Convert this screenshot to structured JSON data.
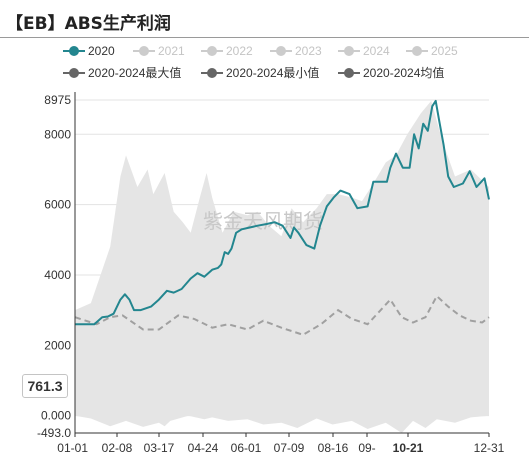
{
  "title": "【EB】ABS生产利润",
  "watermark": "紫金天风期货",
  "legend": [
    {
      "label": "2020",
      "color": "#23868f",
      "active": true
    },
    {
      "label": "2021",
      "color": "#cccccc",
      "active": false
    },
    {
      "label": "2022",
      "color": "#cccccc",
      "active": false
    },
    {
      "label": "2023",
      "color": "#cccccc",
      "active": false
    },
    {
      "label": "2024",
      "color": "#cccccc",
      "active": false
    },
    {
      "label": "2025",
      "color": "#cccccc",
      "active": false
    },
    {
      "label": "2020-2024最大值",
      "color": "#666666",
      "active": true
    },
    {
      "label": "2020-2024最小值",
      "color": "#666666",
      "active": true
    },
    {
      "label": "2020-2024均值",
      "color": "#666666",
      "active": true
    }
  ],
  "crosshair": {
    "x_label": "10-21",
    "y_label": "761.3"
  },
  "chart_data": {
    "type": "area",
    "x_ticks": [
      "01-01",
      "02-08",
      "03-17",
      "04-24",
      "06-01",
      "07-09",
      "08-16",
      "09-",
      "10-21",
      "12-31"
    ],
    "y_ticks": [
      "-493.0",
      "0.000",
      "2000",
      "4000",
      "6000",
      "8000",
      "8975"
    ],
    "ylim": [
      -493,
      8975
    ],
    "grid": true,
    "series": [
      {
        "name": "2020",
        "style": "line",
        "color": "#23868f",
        "points": [
          [
            "01-01",
            2600
          ],
          [
            "01-18",
            2600
          ],
          [
            "01-25",
            2800
          ],
          [
            "01-30",
            2820
          ],
          [
            "02-04",
            2900
          ],
          [
            "02-10",
            3300
          ],
          [
            "02-14",
            3450
          ],
          [
            "02-18",
            3300
          ],
          [
            "02-22",
            3000
          ],
          [
            "02-28",
            3000
          ],
          [
            "03-08",
            3100
          ],
          [
            "03-15",
            3300
          ],
          [
            "03-22",
            3550
          ],
          [
            "03-28",
            3500
          ],
          [
            "04-04",
            3600
          ],
          [
            "04-12",
            3900
          ],
          [
            "04-18",
            4050
          ],
          [
            "04-24",
            3950
          ],
          [
            "05-01",
            4150
          ],
          [
            "05-06",
            4200
          ],
          [
            "05-09",
            4300
          ],
          [
            "05-12",
            4650
          ],
          [
            "05-15",
            4600
          ],
          [
            "05-18",
            4750
          ],
          [
            "05-22",
            5200
          ],
          [
            "05-27",
            5300
          ],
          [
            "06-03",
            5350
          ],
          [
            "06-10",
            5400
          ],
          [
            "06-18",
            5450
          ],
          [
            "06-25",
            5500
          ],
          [
            "07-02",
            5400
          ],
          [
            "07-09",
            5050
          ],
          [
            "07-12",
            5350
          ],
          [
            "07-16",
            5200
          ],
          [
            "07-23",
            4850
          ],
          [
            "07-30",
            4750
          ],
          [
            "08-04",
            5400
          ],
          [
            "08-10",
            5950
          ],
          [
            "08-16",
            6200
          ],
          [
            "08-22",
            6400
          ],
          [
            "08-30",
            6300
          ],
          [
            "09-06",
            5900
          ],
          [
            "09-15",
            5950
          ],
          [
            "09-20",
            6650
          ],
          [
            "09-26",
            6650
          ],
          [
            "10-02",
            6650
          ],
          [
            "10-05",
            7050
          ],
          [
            "10-10",
            7450
          ],
          [
            "10-16",
            7050
          ],
          [
            "10-22",
            7050
          ],
          [
            "10-26",
            8000
          ],
          [
            "10-30",
            7600
          ],
          [
            "11-03",
            8300
          ],
          [
            "11-07",
            8100
          ],
          [
            "11-11",
            8800
          ],
          [
            "11-14",
            8950
          ],
          [
            "11-17",
            8400
          ],
          [
            "11-21",
            7700
          ],
          [
            "11-25",
            6800
          ],
          [
            "11-30",
            6500
          ],
          [
            "12-08",
            6600
          ],
          [
            "12-14",
            6950
          ],
          [
            "12-20",
            6500
          ],
          [
            "12-27",
            6750
          ],
          [
            "12-31",
            6150
          ]
        ]
      },
      {
        "name": "2020-2024最大值",
        "style": "area-upper",
        "color": "#e5e5e5",
        "points": [
          [
            "01-01",
            3000
          ],
          [
            "01-15",
            3200
          ],
          [
            "02-01",
            4800
          ],
          [
            "02-10",
            6800
          ],
          [
            "02-15",
            7400
          ],
          [
            "02-25",
            6500
          ],
          [
            "03-05",
            7000
          ],
          [
            "03-10",
            6300
          ],
          [
            "03-20",
            6900
          ],
          [
            "03-28",
            5800
          ],
          [
            "04-05",
            5500
          ],
          [
            "04-12",
            5200
          ],
          [
            "04-20",
            6200
          ],
          [
            "04-26",
            6900
          ],
          [
            "05-01",
            6200
          ],
          [
            "05-10",
            5200
          ],
          [
            "05-20",
            5800
          ],
          [
            "06-01",
            5700
          ],
          [
            "06-10",
            5800
          ],
          [
            "06-20",
            5400
          ],
          [
            "07-01",
            5100
          ],
          [
            "07-10",
            5900
          ],
          [
            "07-20",
            5500
          ],
          [
            "08-01",
            5900
          ],
          [
            "08-10",
            6300
          ],
          [
            "08-20",
            6300
          ],
          [
            "09-01",
            6200
          ],
          [
            "09-10",
            6100
          ],
          [
            "09-20",
            6600
          ],
          [
            "10-01",
            7200
          ],
          [
            "10-10",
            7400
          ],
          [
            "10-20",
            8000
          ],
          [
            "11-01",
            8600
          ],
          [
            "11-10",
            8950
          ],
          [
            "11-20",
            7800
          ],
          [
            "12-01",
            6800
          ],
          [
            "12-15",
            7000
          ],
          [
            "12-31",
            6500
          ]
        ]
      },
      {
        "name": "2020-2024最小值",
        "style": "area-lower",
        "color": "#ffffff",
        "points": [
          [
            "01-01",
            0
          ],
          [
            "01-15",
            -80
          ],
          [
            "02-01",
            -300
          ],
          [
            "02-15",
            -150
          ],
          [
            "03-01",
            -320
          ],
          [
            "03-15",
            -200
          ],
          [
            "03-20",
            -300
          ],
          [
            "03-25",
            -150
          ],
          [
            "04-10",
            0
          ],
          [
            "04-24",
            -100
          ],
          [
            "05-01",
            -50
          ],
          [
            "05-15",
            -150
          ],
          [
            "06-01",
            -100
          ],
          [
            "06-15",
            -250
          ],
          [
            "07-01",
            -200
          ],
          [
            "07-15",
            -350
          ],
          [
            "08-01",
            -80
          ],
          [
            "08-15",
            -250
          ],
          [
            "09-01",
            -150
          ],
          [
            "09-15",
            -380
          ],
          [
            "10-01",
            -200
          ],
          [
            "10-15",
            -493
          ],
          [
            "10-25",
            -150
          ],
          [
            "11-05",
            -350
          ],
          [
            "11-15",
            -100
          ],
          [
            "12-01",
            -200
          ],
          [
            "12-15",
            -50
          ],
          [
            "12-31",
            0
          ]
        ]
      },
      {
        "name": "2020-2024均值",
        "style": "dashed",
        "color": "#a0a0a0",
        "points": [
          [
            "01-01",
            2800
          ],
          [
            "01-20",
            2600
          ],
          [
            "02-01",
            2800
          ],
          [
            "02-12",
            2850
          ],
          [
            "03-01",
            2450
          ],
          [
            "03-15",
            2450
          ],
          [
            "04-01",
            2850
          ],
          [
            "04-15",
            2750
          ],
          [
            "05-01",
            2500
          ],
          [
            "05-15",
            2600
          ],
          [
            "06-01",
            2450
          ],
          [
            "06-15",
            2700
          ],
          [
            "07-01",
            2500
          ],
          [
            "07-20",
            2300
          ],
          [
            "08-05",
            2600
          ],
          [
            "08-20",
            3000
          ],
          [
            "09-01",
            2750
          ],
          [
            "09-15",
            2600
          ],
          [
            "09-25",
            2950
          ],
          [
            "10-05",
            3300
          ],
          [
            "10-15",
            2800
          ],
          [
            "10-25",
            2650
          ],
          [
            "11-05",
            2800
          ],
          [
            "11-15",
            3400
          ],
          [
            "11-25",
            3100
          ],
          [
            "12-05",
            2850
          ],
          [
            "12-15",
            2700
          ],
          [
            "12-25",
            2650
          ],
          [
            "12-31",
            2800
          ]
        ]
      }
    ]
  }
}
